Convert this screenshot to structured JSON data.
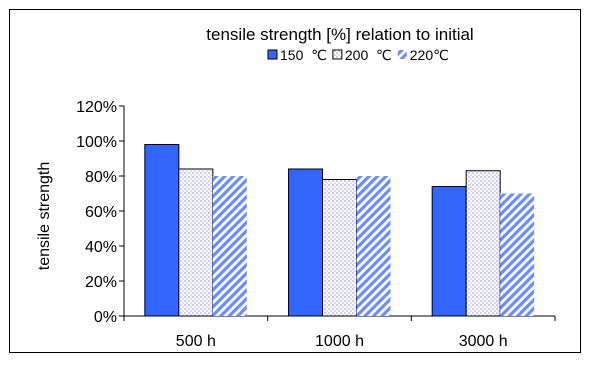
{
  "chart_data": {
    "type": "bar",
    "title": "tensile strength [%] relation to initial",
    "xlabel": "",
    "ylabel": "tensile strength",
    "categories": [
      "500 h",
      "1000 h",
      "3000 h"
    ],
    "series": [
      {
        "name": "150  ℃",
        "values": [
          98,
          84,
          74
        ],
        "fill": "solid",
        "color": "#3366ff"
      },
      {
        "name": "200  ℃",
        "values": [
          84,
          78,
          83
        ],
        "fill": "dots",
        "color": "#9999ff"
      },
      {
        "name": "220℃",
        "values": [
          80,
          80,
          70
        ],
        "fill": "diagonal",
        "color": "#6688ff"
      }
    ],
    "ylim": [
      0,
      120
    ],
    "yticks": [
      0,
      20,
      40,
      60,
      80,
      100,
      120
    ],
    "ytick_labels": [
      "0%",
      "20%",
      "40%",
      "60%",
      "80%",
      "100%",
      "120%"
    ],
    "grid": false,
    "legend_position": "top"
  }
}
